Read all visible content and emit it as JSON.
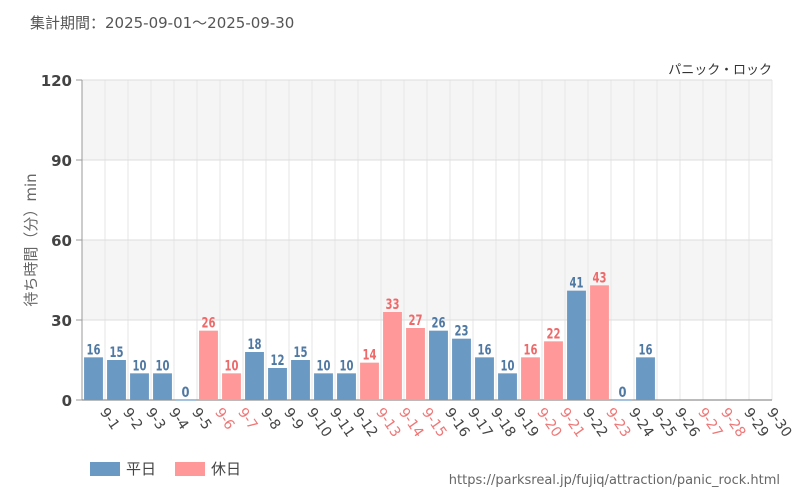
{
  "header": {
    "period": "集計期間：2025-09-01〜2025-09-30"
  },
  "footer": {
    "source_url": "https://parksreal.jp/fujiq/attraction/panic_rock.html"
  },
  "legend": [
    {
      "label": "平日",
      "color": "#6a9ac4"
    },
    {
      "label": "休日",
      "color": "#ff9999"
    }
  ],
  "chart_data": {
    "type": "bar",
    "title": "パニック・ロック",
    "ylabel": "待ち時間（分）min",
    "xlabel": "",
    "ylim": [
      0,
      120
    ],
    "yticks": [
      0,
      30,
      60,
      90,
      120
    ],
    "grid": true,
    "legend_position": "bottom-left",
    "categories": [
      "9-1",
      "9-2",
      "9-3",
      "9-4",
      "9-5",
      "9-6",
      "9-7",
      "9-8",
      "9-9",
      "9-10",
      "9-11",
      "9-12",
      "9-13",
      "9-14",
      "9-15",
      "9-16",
      "9-17",
      "9-18",
      "9-19",
      "9-20",
      "9-21",
      "9-22",
      "9-23",
      "9-24",
      "9-25",
      "9-26",
      "9-27",
      "9-28",
      "9-29",
      "9-30"
    ],
    "values": [
      16,
      15,
      10,
      10,
      0,
      26,
      10,
      18,
      12,
      15,
      10,
      10,
      14,
      33,
      27,
      26,
      23,
      16,
      10,
      16,
      22,
      41,
      43,
      0,
      16,
      null,
      null,
      null,
      null,
      null
    ],
    "day_type": [
      "平日",
      "平日",
      "平日",
      "平日",
      "平日",
      "休日",
      "休日",
      "平日",
      "平日",
      "平日",
      "平日",
      "平日",
      "休日",
      "休日",
      "休日",
      "平日",
      "平日",
      "平日",
      "平日",
      "休日",
      "休日",
      "平日",
      "休日",
      "平日",
      "平日",
      "平日",
      "休日",
      "休日",
      "平日",
      "平日"
    ],
    "colors": {
      "平日": "#6a9ac4",
      "休日": "#ff9999",
      "平日_label": "#4f79a3",
      "休日_label": "#ee6a6a",
      "平日_tick": "#444444",
      "休日_tick": "#ee7777"
    }
  }
}
